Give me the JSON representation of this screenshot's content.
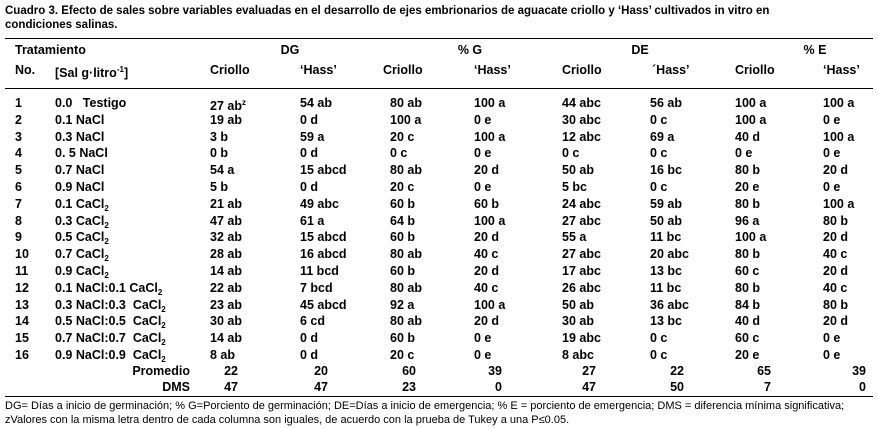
{
  "caption": "Cuadro 3. Efecto de sales sobre variables evaluadas en el desarrollo de ejes embrionarios de aguacate criollo y ‘Hass’ cultivados in vitro en condiciones salinas.",
  "header": {
    "groups": [
      "Tratamiento",
      "DG",
      "% G",
      "DE",
      "% E"
    ],
    "no": "No.",
    "sal": [
      "[Sal g·litro",
      "-1",
      "]"
    ],
    "columns": [
      "Criollo",
      "‘Hass’",
      "Criollo",
      "‘Hass’",
      "Criollo",
      "´Hass’",
      "Criollo",
      "‘Hass’"
    ]
  },
  "rows": [
    {
      "no": "1",
      "sal": "0.0   Testigo",
      "cells": [
        "27 ab",
        "54 ab",
        "80 ab",
        "100 a",
        "44 abc",
        "56 ab",
        "100 a",
        "100 a"
      ],
      "cell_sup": "z"
    },
    {
      "no": "2",
      "sal": "0.1 NaCl",
      "cells": [
        "19 ab",
        "0 d",
        "100 a",
        "0 e",
        "30 abc",
        "0 c",
        "100 a",
        "0 e"
      ]
    },
    {
      "no": "3",
      "sal": "0.3 NaCl",
      "cells": [
        "3 b",
        "59 a",
        "20 c",
        "100 a",
        "12 abc",
        "69 a",
        "40 d",
        "100 a"
      ]
    },
    {
      "no": "4",
      "sal": "0. 5 NaCl",
      "cells": [
        "0 b",
        "0 d",
        "0 c",
        "0 e",
        "0 c",
        "0 c",
        "0 e",
        "0 e"
      ]
    },
    {
      "no": "5",
      "sal": "0.7 NaCl",
      "cells": [
        "54 a",
        "15 abcd",
        "80 ab",
        "20 d",
        "50 ab",
        "16 bc",
        "80 b",
        "20 d"
      ]
    },
    {
      "no": "6",
      "sal": "0.9 NaCl",
      "cells": [
        "5 b",
        "0 d",
        "20 c",
        "0 e",
        "5 bc",
        "0 c",
        "20 e",
        "0 e"
      ]
    },
    {
      "no": "7",
      "sal": "0.1 CaCl",
      "sal_sub": "2",
      "cells": [
        "21 ab",
        "49 abc",
        "60 b",
        "60 b",
        "24 abc",
        "59 ab",
        "80 b",
        "100 a"
      ]
    },
    {
      "no": "8",
      "sal": "0.3 CaCl",
      "sal_sub": "2",
      "cells": [
        "47 ab",
        "61 a",
        "64 b",
        "100 a",
        "27 abc",
        "50 ab",
        "96 a",
        "80 b"
      ]
    },
    {
      "no": "9",
      "sal": "0.5 CaCl",
      "sal_sub": "2",
      "cells": [
        "32 ab",
        "15 abcd",
        "60 b",
        "20 d",
        "55 a",
        "11 bc",
        "100 a",
        "20 d"
      ]
    },
    {
      "no": "10",
      "sal": "0.7 CaCl",
      "sal_sub": "2",
      "cells": [
        "28 ab",
        "16 abcd",
        "80 ab",
        "40 c",
        "27 abc",
        "20 abc",
        "80 b",
        "40 c"
      ]
    },
    {
      "no": "11",
      "sal": "0.9 CaCl",
      "sal_sub": "2",
      "cells": [
        "14 ab",
        "11 bcd",
        "60 b",
        "20 d",
        "17 abc",
        "13 bc",
        "60 c",
        "20 d"
      ]
    },
    {
      "no": "12",
      "sal": "0.1 NaCl:0.1 CaCl",
      "sal_sub": "2",
      "cells": [
        "22 ab",
        "7 bcd",
        "80 ab",
        "40 c",
        "26 abc",
        "11 bc",
        "80 b",
        "40 c"
      ]
    },
    {
      "no": "13",
      "sal": "0.3 NaCl:0.3  CaCl",
      "sal_sub": "2",
      "cells": [
        "23 ab",
        "45 abcd",
        "92 a",
        "100 a",
        "50 ab",
        "36 abc",
        "84 b",
        "80 b"
      ]
    },
    {
      "no": "14",
      "sal": "0.5 NaCl:0.5  CaCl",
      "sal_sub": "2",
      "cells": [
        "30 ab",
        "6 cd",
        "80 ab",
        "20 d",
        "30 ab",
        "13 bc",
        "40 d",
        "20 d"
      ]
    },
    {
      "no": "15",
      "sal": "0.7 NaCl:0.7  CaCl",
      "sal_sub": "2",
      "cells": [
        "14 ab",
        "0 d",
        "60 b",
        "0 e",
        "19 abc",
        "0 c",
        "60 c",
        "0 e"
      ]
    },
    {
      "no": "16",
      "sal": "0.9 NaCl:0.9  CaCl",
      "sal_sub": "2",
      "cells": [
        "8 ab",
        "0 d",
        "20 c",
        "0 e",
        "8 abc",
        "0 c",
        "20 e",
        "0 e"
      ]
    }
  ],
  "summary": [
    {
      "label": "Promedio",
      "cells": [
        22,
        20,
        60,
        39,
        27,
        22,
        65,
        39
      ]
    },
    {
      "label": "DMS",
      "cells": [
        47,
        47,
        23,
        0,
        47,
        50,
        7,
        0
      ]
    }
  ],
  "footnote": "DG= Días a inicio de germinación; % G=Porciento de germinación; DE=Días a inicio de  emergencia; % E = porciento de emergencia; DMS = diferencia mínima significativa; zValores con la misma letra dentro de cada columna son iguales, de acuerdo con la prueba de Tukey a una P≤0.05."
}
